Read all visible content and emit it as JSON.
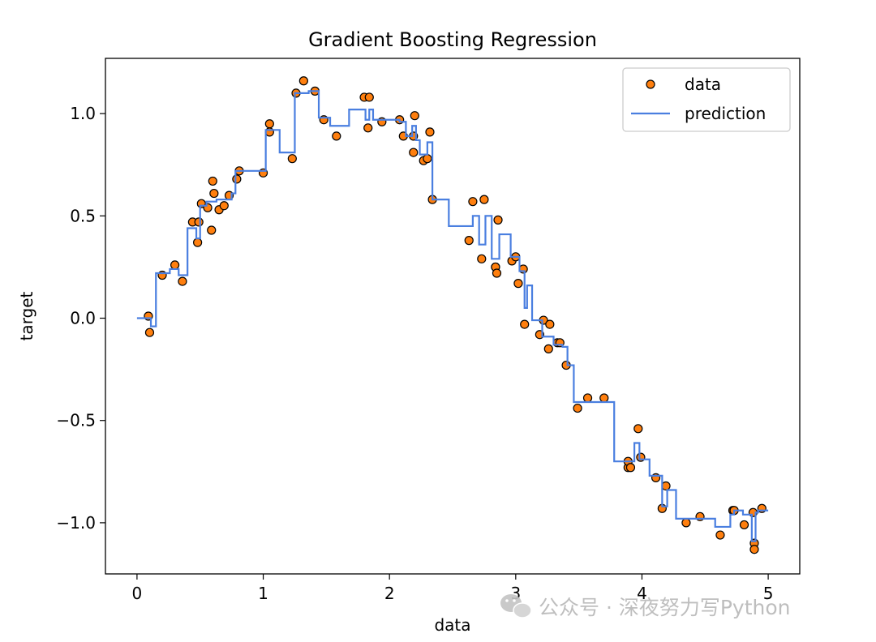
{
  "chart_data": {
    "type": "scatter",
    "title": "Gradient Boosting Regression",
    "xlabel": "data",
    "ylabel": "target",
    "xlim": [
      -0.25,
      5.25
    ],
    "ylim": [
      -1.25,
      1.27
    ],
    "xticks": [
      0,
      1,
      2,
      3,
      4,
      5
    ],
    "xtick_labels": [
      "0",
      "1",
      "2",
      "3",
      "4",
      "5"
    ],
    "yticks": [
      -1.0,
      -0.5,
      0.0,
      0.5,
      1.0
    ],
    "ytick_labels": [
      "−1.0",
      "−0.5",
      "0.0",
      "0.5",
      "1.0"
    ],
    "grid": false,
    "legend": {
      "position": "top-right",
      "entries": [
        {
          "label": "data",
          "kind": "marker"
        },
        {
          "label": "prediction",
          "kind": "line"
        }
      ]
    },
    "series": [
      {
        "name": "data",
        "kind": "scatter",
        "color": "#ff7f0e",
        "edge_color": "#000000",
        "x": [
          0.09,
          0.1,
          0.2,
          0.3,
          0.36,
          0.44,
          0.48,
          0.49,
          0.51,
          0.56,
          0.59,
          0.6,
          0.61,
          0.65,
          0.69,
          0.73,
          0.79,
          0.81,
          1.0,
          1.05,
          1.05,
          1.23,
          1.26,
          1.32,
          1.41,
          1.48,
          1.58,
          1.8,
          1.83,
          1.84,
          1.94,
          2.08,
          2.11,
          2.19,
          2.19,
          2.2,
          2.27,
          2.3,
          2.32,
          2.34,
          2.63,
          2.66,
          2.73,
          2.75,
          2.84,
          2.84,
          2.85,
          2.86,
          2.97,
          3.0,
          3.02,
          3.06,
          3.07,
          3.19,
          3.22,
          3.26,
          3.27,
          3.33,
          3.35,
          3.4,
          3.49,
          3.57,
          3.7,
          3.89,
          3.89,
          3.91,
          3.97,
          3.99,
          4.11,
          4.16,
          4.19,
          4.35,
          4.46,
          4.62,
          4.72,
          4.73,
          4.81,
          4.88,
          4.89,
          4.89,
          4.95
        ],
        "y": [
          0.01,
          -0.07,
          0.21,
          0.26,
          0.18,
          0.47,
          0.37,
          0.47,
          0.56,
          0.54,
          0.43,
          0.67,
          0.61,
          0.53,
          0.55,
          0.6,
          0.68,
          0.72,
          0.71,
          0.95,
          0.91,
          0.78,
          1.1,
          1.16,
          1.11,
          0.97,
          0.89,
          1.08,
          0.93,
          1.08,
          0.96,
          0.97,
          0.89,
          0.81,
          0.89,
          0.99,
          0.77,
          0.78,
          0.91,
          0.58,
          0.38,
          0.57,
          0.29,
          0.58,
          0.25,
          0.25,
          0.22,
          0.48,
          0.28,
          0.3,
          0.17,
          0.24,
          -0.03,
          -0.08,
          -0.01,
          -0.15,
          -0.03,
          -0.12,
          -0.12,
          -0.23,
          -0.44,
          -0.39,
          -0.39,
          -0.73,
          -0.7,
          -0.73,
          -0.54,
          -0.68,
          -0.78,
          -0.93,
          -0.82,
          -1.0,
          -0.97,
          -1.06,
          -0.94,
          -0.94,
          -1.01,
          -0.95,
          -1.1,
          -1.13,
          -0.93
        ]
      },
      {
        "name": "prediction",
        "kind": "line",
        "step": true,
        "color": "#4a7fe0",
        "x": [
          0.0,
          0.09,
          0.11,
          0.15,
          0.26,
          0.33,
          0.4,
          0.47,
          0.5,
          0.55,
          0.63,
          0.75,
          0.78,
          1.02,
          1.13,
          1.25,
          1.36,
          1.44,
          1.53,
          1.68,
          1.81,
          1.84,
          1.87,
          2.08,
          2.13,
          2.18,
          2.21,
          2.24,
          2.3,
          2.34,
          2.37,
          2.47,
          2.66,
          2.71,
          2.76,
          2.81,
          2.87,
          2.96,
          3.03,
          3.07,
          3.09,
          3.13,
          3.21,
          3.3,
          3.37,
          3.41,
          3.46,
          3.61,
          3.78,
          3.87,
          3.94,
          3.98,
          4.06,
          4.16,
          4.2,
          4.27,
          4.36,
          4.46,
          4.58,
          4.7,
          4.73,
          4.8,
          4.87,
          4.9,
          4.92,
          5.0
        ],
        "y": [
          0.0,
          0.0,
          -0.04,
          0.22,
          0.24,
          0.21,
          0.44,
          0.39,
          0.55,
          0.57,
          0.58,
          0.61,
          0.72,
          0.92,
          0.81,
          1.1,
          1.11,
          0.98,
          0.94,
          1.02,
          0.97,
          1.02,
          0.97,
          0.96,
          0.89,
          0.94,
          0.87,
          0.8,
          0.86,
          0.58,
          0.58,
          0.45,
          0.5,
          0.36,
          0.5,
          0.29,
          0.41,
          0.3,
          0.23,
          0.05,
          0.16,
          -0.01,
          -0.09,
          -0.13,
          -0.14,
          -0.23,
          -0.41,
          -0.41,
          -0.7,
          -0.7,
          -0.61,
          -0.69,
          -0.77,
          -0.92,
          -0.84,
          -0.98,
          -0.98,
          -0.98,
          -1.02,
          -0.96,
          -0.94,
          -0.96,
          -1.09,
          -0.95,
          -0.94,
          -0.94
        ]
      }
    ]
  },
  "watermark": {
    "text": "公众号 · 深夜努力写Python",
    "icon": "wechat-icon"
  }
}
